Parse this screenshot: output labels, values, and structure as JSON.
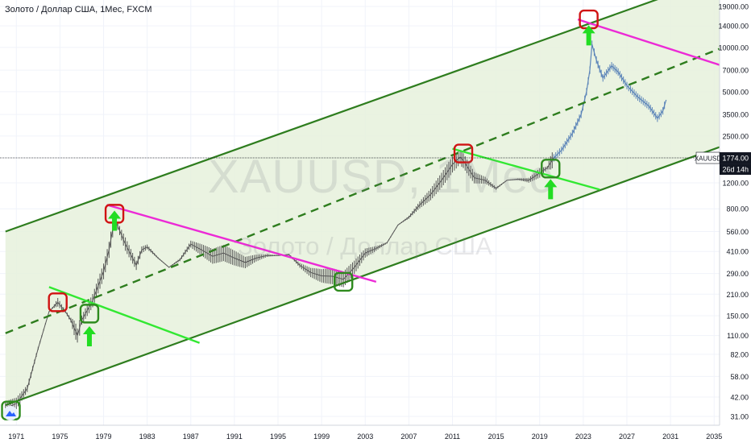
{
  "header": {
    "title": "Золото / Доллар США, 1Мес, FXCM",
    "watermark_symbol": "XAUUSD, 1Мес",
    "watermark_name": "Золото / Доллар США"
  },
  "chart_data": {
    "type": "line",
    "symbol": "XAUUSD",
    "y_scale": "log",
    "ylim": [
      27,
      21000
    ],
    "xlim": [
      1969.5,
      2035.5
    ],
    "x_ticks": [
      "1971",
      "1975",
      "1979",
      "1983",
      "1987",
      "1991",
      "1995",
      "1999",
      "2003",
      "2007",
      "2011",
      "2015",
      "2019",
      "2023",
      "2027",
      "2031",
      "2035"
    ],
    "y_ticks": [
      "19000.00",
      "14000.00",
      "10000.00",
      "7000.00",
      "5000.00",
      "3500.00",
      "2500.00",
      "1200.00",
      "800.00",
      "560.00",
      "410.00",
      "290.00",
      "210.00",
      "150.00",
      "110.00",
      "82.00",
      "58.00",
      "42.00",
      "31.00"
    ],
    "price_label": "1774.00",
    "price_value": 1774,
    "countdown_label": "26d 14h",
    "colors": {
      "price": "#555555",
      "projection": "#5b84b8",
      "channel": "#2e7d1e",
      "channel_fill": "#e6f1dc",
      "resistance": "#ec2ad6",
      "support": "#32e832",
      "marker_red": "#d01313",
      "marker_green": "#2e8b1e",
      "arrow": "#22dd22",
      "price_tag": "#131722"
    },
    "price_series": [
      [
        1970.0,
        35
      ],
      [
        1971.0,
        38
      ],
      [
        1972.0,
        48
      ],
      [
        1973.0,
        90
      ],
      [
        1974.0,
        160
      ],
      [
        1974.8,
        185
      ],
      [
        1975.5,
        160
      ],
      [
        1976.0,
        140
      ],
      [
        1976.6,
        110
      ],
      [
        1977.0,
        140
      ],
      [
        1978.0,
        190
      ],
      [
        1979.0,
        300
      ],
      [
        1979.5,
        420
      ],
      [
        1980.0,
        680
      ],
      [
        1980.3,
        610
      ],
      [
        1981.0,
        460
      ],
      [
        1982.0,
        330
      ],
      [
        1982.5,
        420
      ],
      [
        1983.0,
        440
      ],
      [
        1984.0,
        370
      ],
      [
        1985.0,
        320
      ],
      [
        1986.0,
        360
      ],
      [
        1987.0,
        460
      ],
      [
        1988.0,
        420
      ],
      [
        1989.0,
        380
      ],
      [
        1990.0,
        400
      ],
      [
        1991.0,
        370
      ],
      [
        1992.0,
        345
      ],
      [
        1993.0,
        370
      ],
      [
        1994.0,
        385
      ],
      [
        1995.0,
        385
      ],
      [
        1996.0,
        390
      ],
      [
        1997.0,
        330
      ],
      [
        1998.0,
        295
      ],
      [
        1999.0,
        280
      ],
      [
        2000.0,
        278
      ],
      [
        2001.0,
        265
      ],
      [
        2002.0,
        320
      ],
      [
        2003.0,
        400
      ],
      [
        2004.0,
        430
      ],
      [
        2005.0,
        470
      ],
      [
        2006.0,
        620
      ],
      [
        2007.0,
        700
      ],
      [
        2008.0,
        850
      ],
      [
        2009.0,
        1000
      ],
      [
        2010.0,
        1250
      ],
      [
        2011.0,
        1600
      ],
      [
        2011.7,
        1800
      ],
      [
        2012.0,
        1700
      ],
      [
        2013.0,
        1300
      ],
      [
        2014.0,
        1250
      ],
      [
        2015.0,
        1100
      ],
      [
        2016.0,
        1250
      ],
      [
        2017.0,
        1270
      ],
      [
        2018.0,
        1250
      ],
      [
        2019.0,
        1400
      ],
      [
        2019.7,
        1520
      ],
      [
        2020.3,
        1774
      ]
    ],
    "projection_series": [
      [
        2020.3,
        1774
      ],
      [
        2021.0,
        2000
      ],
      [
        2022.0,
        2600
      ],
      [
        2022.8,
        3500
      ],
      [
        2023.3,
        5000
      ],
      [
        2023.6,
        7000
      ],
      [
        2023.8,
        10500
      ],
      [
        2024.2,
        8200
      ],
      [
        2024.8,
        6200
      ],
      [
        2025.6,
        7500
      ],
      [
        2026.2,
        6800
      ],
      [
        2027.0,
        5500
      ],
      [
        2028.0,
        4600
      ],
      [
        2029.0,
        4000
      ],
      [
        2029.8,
        3300
      ],
      [
        2030.3,
        3700
      ],
      [
        2030.6,
        4400
      ]
    ],
    "channel": {
      "upper": [
        [
          1970.0,
          560
        ],
        [
          2035.5,
          30000
        ]
      ],
      "middle": [
        [
          1970.0,
          114
        ],
        [
          2035.5,
          9800
        ]
      ],
      "lower": [
        [
          1970.0,
          37
        ],
        [
          2035.5,
          2100
        ]
      ]
    },
    "trend_lines": [
      {
        "kind": "resistance",
        "points": [
          [
            1979.3,
            850
          ],
          [
            2004.0,
            255
          ]
        ]
      },
      {
        "kind": "support",
        "points": [
          [
            1974.0,
            235
          ],
          [
            1987.8,
            98
          ]
        ]
      },
      {
        "kind": "support",
        "points": [
          [
            2011.0,
            2050
          ],
          [
            2024.5,
            1080
          ]
        ]
      },
      {
        "kind": "resistance",
        "points": [
          [
            2022.5,
            15500
          ],
          [
            2035.5,
            7600
          ]
        ]
      }
    ],
    "markers": [
      {
        "kind": "red",
        "x": 1974.8,
        "y": 185
      },
      {
        "kind": "red",
        "x": 1980.0,
        "y": 740
      },
      {
        "kind": "red",
        "x": 2012.0,
        "y": 1900
      },
      {
        "kind": "red",
        "x": 2023.5,
        "y": 15500
      },
      {
        "kind": "green",
        "x": 1970.5,
        "y": 34
      },
      {
        "kind": "green",
        "x": 1977.7,
        "y": 155
      },
      {
        "kind": "green",
        "x": 2001.0,
        "y": 255
      },
      {
        "kind": "green",
        "x": 2020.0,
        "y": 1500
      }
    ],
    "arrows": [
      {
        "x": 1977.7,
        "y": 108
      },
      {
        "x": 1980.0,
        "y": 660
      },
      {
        "x": 2020.0,
        "y": 1080
      },
      {
        "x": 2023.5,
        "y": 12000
      }
    ]
  }
}
